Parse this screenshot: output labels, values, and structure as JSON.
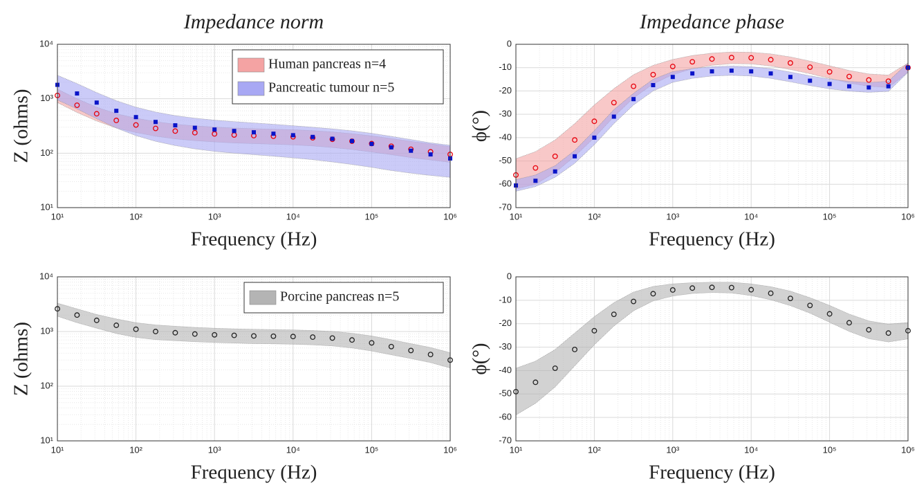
{
  "chart_data": [
    {
      "type": "scatter",
      "title": "Impedance norm",
      "x_label": "Frequency (Hz)",
      "y_label": "Z (ohms)",
      "xscale": "log",
      "yscale": "log",
      "grid": true,
      "legend": "upper right",
      "x": [
        10,
        17.78,
        31.62,
        56.23,
        100,
        177.8,
        316.2,
        562.3,
        1000,
        1778,
        3162,
        5623,
        10000,
        17783,
        31623,
        56234,
        100000,
        177828,
        316228,
        562341,
        1000000
      ],
      "xlim": [
        10,
        1000000
      ],
      "xticks": [
        {
          "value": 10,
          "label": "10¹"
        },
        {
          "value": 100,
          "label": "10²"
        },
        {
          "value": 1000,
          "label": "10³"
        },
        {
          "value": 10000,
          "label": "10⁴"
        },
        {
          "value": 100000,
          "label": "10⁵"
        },
        {
          "value": 1000000,
          "label": "10⁶"
        }
      ],
      "ylim": [
        10,
        10000
      ],
      "yticks": [
        {
          "value": 10,
          "label": "10¹"
        },
        {
          "value": 100,
          "label": "10²"
        },
        {
          "value": 1000,
          "label": "10³"
        },
        {
          "value": 10000,
          "label": "10⁴"
        }
      ],
      "series": [
        {
          "name": "Human pancreas n=4",
          "color": "#e8000b",
          "band_color": "#f4a3a3",
          "marker": "o",
          "values": [
            1150,
            760,
            530,
            400,
            330,
            285,
            255,
            238,
            226,
            216,
            210,
            205,
            200,
            192,
            180,
            166,
            150,
            134,
            118,
            106,
            95
          ],
          "lower": [
            850,
            560,
            390,
            290,
            240,
            205,
            183,
            170,
            161,
            154,
            150,
            146,
            142,
            136,
            127,
            117,
            105,
            94,
            83,
            75,
            68
          ],
          "upper": [
            1500,
            1000,
            700,
            530,
            440,
            380,
            340,
            318,
            302,
            290,
            282,
            276,
            270,
            260,
            246,
            228,
            208,
            186,
            165,
            148,
            132
          ]
        },
        {
          "name": "Pancreatic tumour n=5",
          "color": "#0a14c8",
          "band_color": "#a8a8f4",
          "marker": "s",
          "values": [
            1800,
            1250,
            850,
            600,
            460,
            375,
            325,
            293,
            272,
            256,
            242,
            228,
            214,
            199,
            184,
            167,
            148,
            128,
            111,
            95,
            80
          ],
          "lower": [
            950,
            650,
            430,
            290,
            210,
            165,
            138,
            120,
            108,
            100,
            94,
            88,
            82,
            76,
            69,
            62,
            55,
            48,
            43,
            39,
            36
          ],
          "upper": [
            2700,
            1900,
            1300,
            920,
            700,
            570,
            490,
            440,
            405,
            380,
            360,
            340,
            320,
            300,
            280,
            258,
            232,
            204,
            178,
            155,
            140
          ]
        }
      ]
    },
    {
      "type": "scatter",
      "title": "Impedance phase",
      "x_label": "Frequency (Hz)",
      "y_label": "ϕ(°)",
      "xscale": "log",
      "yscale": "linear",
      "grid": true,
      "x": [
        10,
        17.78,
        31.62,
        56.23,
        100,
        177.8,
        316.2,
        562.3,
        1000,
        1778,
        3162,
        5623,
        10000,
        17783,
        31623,
        56234,
        100000,
        177828,
        316228,
        562341,
        1000000
      ],
      "xlim": [
        10,
        1000000
      ],
      "xticks": [
        {
          "value": 10,
          "label": "10¹"
        },
        {
          "value": 100,
          "label": "10²"
        },
        {
          "value": 1000,
          "label": "10³"
        },
        {
          "value": 10000,
          "label": "10⁴"
        },
        {
          "value": 100000,
          "label": "10⁵"
        },
        {
          "value": 1000000,
          "label": "10⁶"
        }
      ],
      "ylim": [
        -70,
        0
      ],
      "yticks": [
        0,
        -10,
        -20,
        -30,
        -40,
        -50,
        -60,
        -70
      ],
      "series": [
        {
          "name": "Human pancreas n=4",
          "color": "#e8000b",
          "band_color": "#f4a3a3",
          "marker": "o",
          "values": [
            -56,
            -53,
            -48,
            -41,
            -33,
            -25,
            -18,
            -13,
            -9.5,
            -7.5,
            -6.3,
            -5.7,
            -5.8,
            -6.6,
            -8,
            -9.8,
            -11.8,
            -13.8,
            -15.3,
            -15.8,
            -10
          ],
          "lower": [
            -62,
            -60,
            -55,
            -48,
            -40,
            -31,
            -23,
            -17,
            -13,
            -10.5,
            -9,
            -8.3,
            -8.4,
            -9.3,
            -10.8,
            -12.6,
            -14.6,
            -16.6,
            -18,
            -18.5,
            -12
          ],
          "upper": [
            -49,
            -46,
            -41,
            -34,
            -26,
            -19,
            -13,
            -9,
            -6.5,
            -4.8,
            -3.8,
            -3.3,
            -3.4,
            -4.1,
            -5.4,
            -7.2,
            -9.2,
            -11.2,
            -12.7,
            -13.2,
            -8
          ]
        },
        {
          "name": "Pancreatic tumour n=5",
          "color": "#0a14c8",
          "band_color": "#a8a8f4",
          "marker": "s",
          "values": [
            -60.5,
            -58.5,
            -54.5,
            -48,
            -40,
            -31,
            -23.5,
            -17.5,
            -14,
            -12.5,
            -11.6,
            -11.3,
            -11.6,
            -12.5,
            -14,
            -15.6,
            -17,
            -18,
            -18.5,
            -18,
            -10
          ],
          "lower": [
            -63,
            -61,
            -57,
            -51,
            -43,
            -34,
            -26,
            -20,
            -16.3,
            -14.6,
            -13.6,
            -13.3,
            -13.6,
            -14.6,
            -16.1,
            -17.7,
            -19.1,
            -20.1,
            -20.6,
            -20.2,
            -12
          ],
          "upper": [
            -58,
            -56,
            -52,
            -45.5,
            -37,
            -28,
            -21,
            -15,
            -11.7,
            -10.4,
            -9.6,
            -9.3,
            -9.6,
            -10.4,
            -11.9,
            -13.5,
            -14.9,
            -15.9,
            -16.4,
            -15.8,
            -8
          ]
        }
      ]
    },
    {
      "type": "scatter",
      "x_label": "Frequency (Hz)",
      "y_label": "Z (ohms)",
      "xscale": "log",
      "yscale": "log",
      "grid": true,
      "legend": "upper right",
      "x": [
        10,
        17.78,
        31.62,
        56.23,
        100,
        177.8,
        316.2,
        562.3,
        1000,
        1778,
        3162,
        5623,
        10000,
        17783,
        31623,
        56234,
        100000,
        177828,
        316228,
        562341,
        1000000
      ],
      "xlim": [
        10,
        1000000
      ],
      "xticks": [
        {
          "value": 10,
          "label": "10¹"
        },
        {
          "value": 100,
          "label": "10²"
        },
        {
          "value": 1000,
          "label": "10³"
        },
        {
          "value": 10000,
          "label": "10⁴"
        },
        {
          "value": 100000,
          "label": "10⁵"
        },
        {
          "value": 1000000,
          "label": "10⁶"
        }
      ],
      "ylim": [
        10,
        10000
      ],
      "yticks": [
        {
          "value": 10,
          "label": "10¹"
        },
        {
          "value": 100,
          "label": "10²"
        },
        {
          "value": 1000,
          "label": "10³"
        },
        {
          "value": 10000,
          "label": "10⁴"
        }
      ],
      "series": [
        {
          "name": "Porcine pancreas n=5",
          "color": "#222222",
          "band_color": "#b4b4b4",
          "marker": "o",
          "values": [
            2600,
            2000,
            1600,
            1300,
            1100,
            1000,
            950,
            900,
            870,
            850,
            830,
            820,
            810,
            790,
            760,
            700,
            620,
            530,
            450,
            380,
            300
          ],
          "lower": [
            1900,
            1450,
            1150,
            920,
            780,
            710,
            680,
            650,
            630,
            615,
            600,
            595,
            585,
            570,
            545,
            500,
            440,
            375,
            320,
            270,
            215
          ],
          "upper": [
            3300,
            2600,
            2050,
            1700,
            1450,
            1320,
            1250,
            1190,
            1150,
            1120,
            1100,
            1085,
            1070,
            1045,
            1005,
            930,
            830,
            710,
            600,
            510,
            410
          ]
        }
      ]
    },
    {
      "type": "scatter",
      "x_label": "Frequency (Hz)",
      "y_label": "ϕ(°)",
      "xscale": "log",
      "yscale": "linear",
      "grid": true,
      "x": [
        10,
        17.78,
        31.62,
        56.23,
        100,
        177.8,
        316.2,
        562.3,
        1000,
        1778,
        3162,
        5623,
        10000,
        17783,
        31623,
        56234,
        100000,
        177828,
        316228,
        562341,
        1000000
      ],
      "xlim": [
        10,
        1000000
      ],
      "xticks": [
        {
          "value": 10,
          "label": "10¹"
        },
        {
          "value": 100,
          "label": "10²"
        },
        {
          "value": 1000,
          "label": "10³"
        },
        {
          "value": 10000,
          "label": "10⁴"
        },
        {
          "value": 100000,
          "label": "10⁵"
        },
        {
          "value": 1000000,
          "label": "10⁶"
        }
      ],
      "ylim": [
        -70,
        0
      ],
      "yticks": [
        0,
        -10,
        -20,
        -30,
        -40,
        -50,
        -60,
        -70
      ],
      "series": [
        {
          "name": "Porcine pancreas n=5",
          "color": "#222222",
          "band_color": "#b4b4b4",
          "marker": "o",
          "values": [
            -49,
            -45,
            -39,
            -31,
            -23,
            -16,
            -10.5,
            -7.2,
            -5.6,
            -4.8,
            -4.5,
            -4.6,
            -5.5,
            -7,
            -9.2,
            -12.2,
            -15.8,
            -19.6,
            -22.6,
            -24,
            -23
          ],
          "lower": [
            -59,
            -54,
            -47,
            -38,
            -29,
            -21,
            -14.5,
            -10.3,
            -8.2,
            -7.1,
            -6.7,
            -6.9,
            -8,
            -9.8,
            -12.3,
            -15.5,
            -19.4,
            -23.3,
            -26.4,
            -27.8,
            -26.5
          ],
          "upper": [
            -39,
            -36,
            -31,
            -24,
            -17,
            -11,
            -6.5,
            -4.1,
            -3,
            -2.5,
            -2.3,
            -2.3,
            -3,
            -4.2,
            -6.1,
            -8.9,
            -12.2,
            -15.9,
            -18.8,
            -20.2,
            -19.5
          ]
        }
      ]
    }
  ]
}
